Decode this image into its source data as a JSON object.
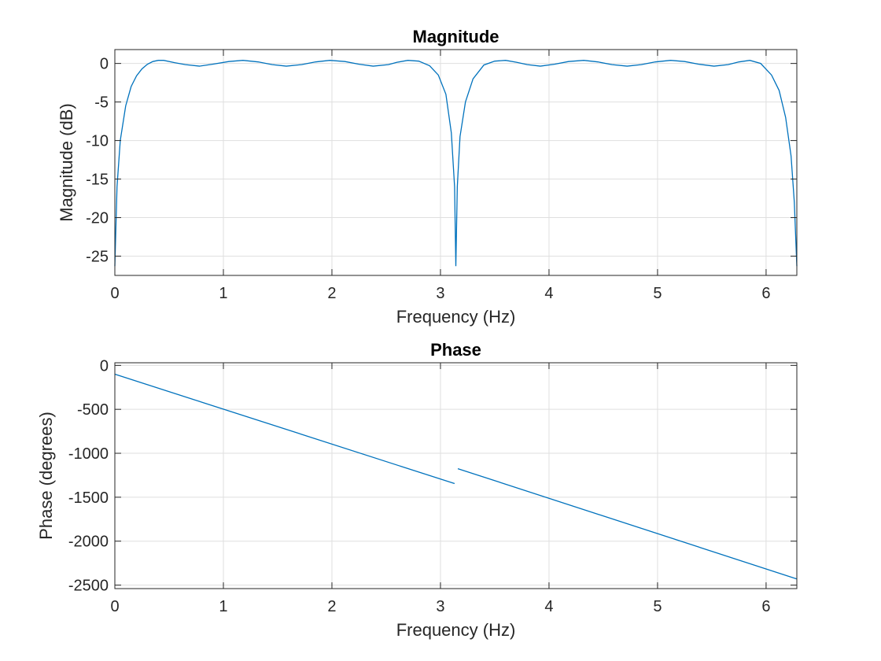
{
  "chart_data": [
    {
      "type": "line",
      "title": "Magnitude",
      "xlabel": "Frequency (Hz)",
      "ylabel": "Magnitude (dB)",
      "xlim": [
        0,
        6.2832
      ],
      "ylim": [
        -27.5,
        1.8
      ],
      "xticks": [
        0,
        1,
        2,
        3,
        4,
        5,
        6
      ],
      "yticks": [
        0,
        -5,
        -10,
        -15,
        -20,
        -25
      ],
      "grid": true,
      "color": "#0072BD",
      "series": [
        {
          "x": [
            0,
            0.02,
            0.05,
            0.1,
            0.15,
            0.2,
            0.25,
            0.3,
            0.35,
            0.4,
            0.45,
            0.55,
            0.65,
            0.78,
            0.9,
            1.05,
            1.18,
            1.32,
            1.45,
            1.58,
            1.72,
            1.85,
            1.98,
            2.12,
            2.25,
            2.38,
            2.52,
            2.6,
            2.7,
            2.8,
            2.9,
            2.98,
            3.05,
            3.1,
            3.13,
            3.1416,
            3.155,
            3.18,
            3.23,
            3.3,
            3.4,
            3.5,
            3.6,
            3.7,
            3.8,
            3.92,
            4.05,
            4.18,
            4.32,
            4.45,
            4.58,
            4.72,
            4.85,
            4.98,
            5.12,
            5.25,
            5.38,
            5.52,
            5.65,
            5.75,
            5.85,
            5.95,
            6.05,
            6.12,
            6.18,
            6.23,
            6.26,
            6.2832
          ],
          "y": [
            -26.3,
            -16.0,
            -10.0,
            -5.5,
            -3.0,
            -1.6,
            -0.7,
            -0.1,
            0.25,
            0.4,
            0.4,
            0.1,
            -0.15,
            -0.35,
            -0.1,
            0.25,
            0.4,
            0.2,
            -0.15,
            -0.35,
            -0.15,
            0.2,
            0.4,
            0.25,
            -0.1,
            -0.35,
            -0.15,
            0.15,
            0.4,
            0.3,
            -0.3,
            -1.5,
            -4.0,
            -9.0,
            -16.0,
            -26.3,
            -16.0,
            -9.5,
            -5.0,
            -2.0,
            -0.2,
            0.3,
            0.4,
            0.15,
            -0.15,
            -0.35,
            -0.1,
            0.25,
            0.4,
            0.2,
            -0.15,
            -0.35,
            -0.15,
            0.2,
            0.4,
            0.25,
            -0.1,
            -0.35,
            -0.15,
            0.2,
            0.4,
            0.0,
            -1.5,
            -3.5,
            -7.0,
            -12.0,
            -18.0,
            -26.3
          ]
        }
      ]
    },
    {
      "type": "line",
      "title": "Phase",
      "xlabel": "Frequency (Hz)",
      "ylabel": "Phase (degrees)",
      "xlim": [
        0,
        6.2832
      ],
      "ylim": [
        -2540,
        30
      ],
      "xticks": [
        0,
        1,
        2,
        3,
        4,
        5,
        6
      ],
      "yticks": [
        0,
        -500,
        -1000,
        -1500,
        -2000,
        -2500
      ],
      "grid": true,
      "color": "#0072BD",
      "series": [
        {
          "x": [
            0,
            3.13
          ],
          "y": [
            -100,
            -1345
          ]
        },
        {
          "x": [
            3.16,
            6.2832
          ],
          "y": [
            -1175,
            -2430
          ]
        }
      ]
    }
  ]
}
